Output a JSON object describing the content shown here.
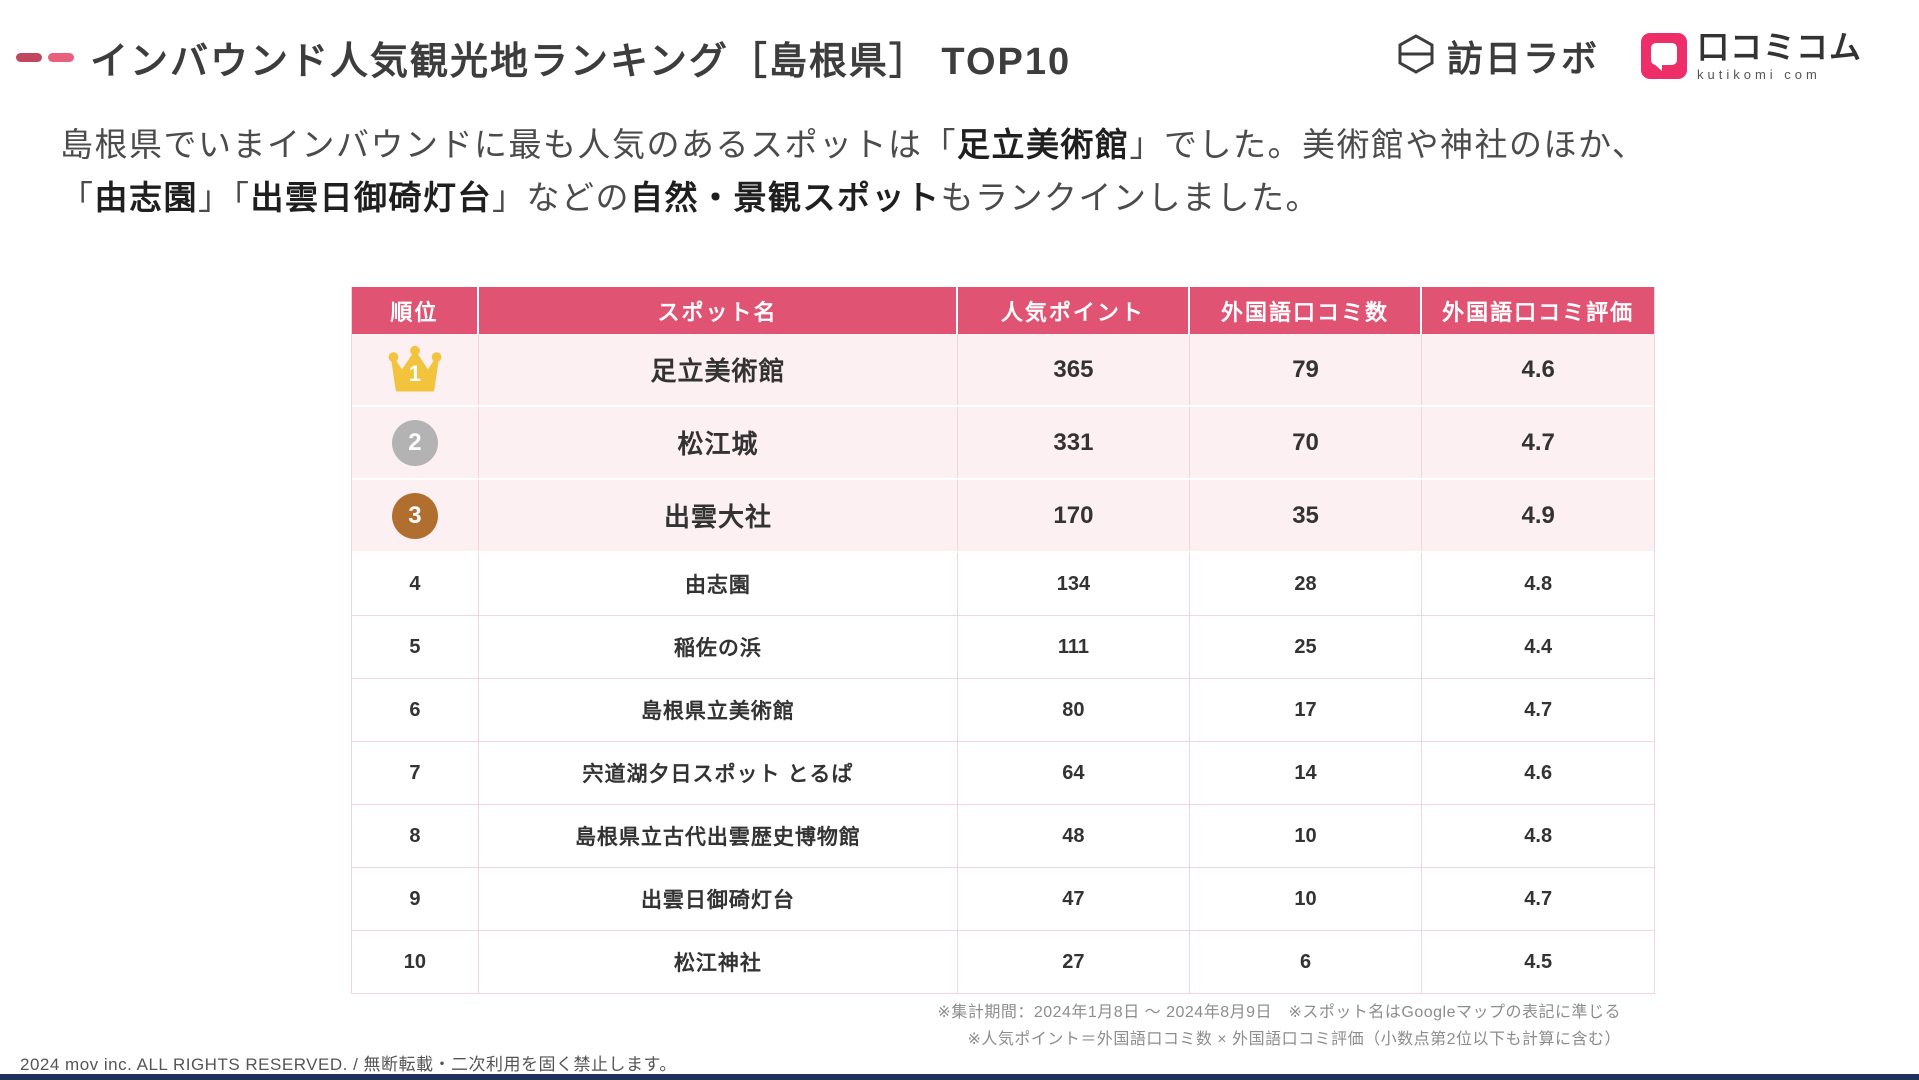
{
  "header": {
    "title": "インバウンド人気観光地ランキング［島根県］ TOP10",
    "logo_honichi": {
      "text": "訪日ラボ"
    },
    "logo_kutikomi": {
      "text": "口コミコム",
      "subtext": "kutikomi com"
    }
  },
  "intro": {
    "lines": [
      [
        {
          "t": "島根県でいまインバウンドに最も人気のあるスポットは「",
          "b": false
        },
        {
          "t": "足立美術館",
          "b": true
        },
        {
          "t": "」でした。美術館や神社のほか、",
          "b": false
        }
      ],
      [
        {
          "t": "「",
          "b": false
        },
        {
          "t": "由志園",
          "b": true
        },
        {
          "t": "」「",
          "b": false
        },
        {
          "t": "出雲日御碕灯台",
          "b": true
        },
        {
          "t": "」などの",
          "b": false
        },
        {
          "t": "自然・景観スポット",
          "b": true
        },
        {
          "t": "もランクインしました。",
          "b": false
        }
      ]
    ]
  },
  "table": {
    "columns": [
      "順位",
      "スポット名",
      "人気ポイント",
      "外国語口コミ数",
      "外国語口コミ評価"
    ],
    "rows": [
      {
        "rank": "1",
        "spot": "足立美術館",
        "points": "365",
        "reviews": "79",
        "rating": "4.6",
        "medal": "gold"
      },
      {
        "rank": "2",
        "spot": "松江城",
        "points": "331",
        "reviews": "70",
        "rating": "4.7",
        "medal": "silver"
      },
      {
        "rank": "3",
        "spot": "出雲大社",
        "points": "170",
        "reviews": "35",
        "rating": "4.9",
        "medal": "bronze"
      },
      {
        "rank": "4",
        "spot": "由志園",
        "points": "134",
        "reviews": "28",
        "rating": "4.8",
        "medal": ""
      },
      {
        "rank": "5",
        "spot": "稲佐の浜",
        "points": "111",
        "reviews": "25",
        "rating": "4.4",
        "medal": ""
      },
      {
        "rank": "6",
        "spot": "島根県立美術館",
        "points": "80",
        "reviews": "17",
        "rating": "4.7",
        "medal": ""
      },
      {
        "rank": "7",
        "spot": "宍道湖夕日スポット とるぱ",
        "points": "64",
        "reviews": "14",
        "rating": "4.6",
        "medal": ""
      },
      {
        "rank": "8",
        "spot": "島根県立古代出雲歴史博物館",
        "points": "48",
        "reviews": "10",
        "rating": "4.8",
        "medal": ""
      },
      {
        "rank": "9",
        "spot": "出雲日御碕灯台",
        "points": "47",
        "reviews": "10",
        "rating": "4.7",
        "medal": ""
      },
      {
        "rank": "10",
        "spot": "松江神社",
        "points": "27",
        "reviews": "6",
        "rating": "4.5",
        "medal": ""
      }
    ]
  },
  "chart_data": {
    "type": "table",
    "title": "インバウンド人気観光地ランキング［島根県］ TOP10",
    "columns": [
      "順位",
      "スポット名",
      "人気ポイント",
      "外国語口コミ数",
      "外国語口コミ評価"
    ],
    "rows": [
      [
        1,
        "足立美術館",
        365,
        79,
        4.6
      ],
      [
        2,
        "松江城",
        331,
        70,
        4.7
      ],
      [
        3,
        "出雲大社",
        170,
        35,
        4.9
      ],
      [
        4,
        "由志園",
        134,
        28,
        4.8
      ],
      [
        5,
        "稲佐の浜",
        111,
        25,
        4.4
      ],
      [
        6,
        "島根県立美術館",
        80,
        17,
        4.7
      ],
      [
        7,
        "宍道湖夕日スポット とるぱ",
        64,
        14,
        4.6
      ],
      [
        8,
        "島根県立古代出雲歴史博物館",
        48,
        10,
        4.8
      ],
      [
        9,
        "出雲日御碕灯台",
        47,
        10,
        4.7
      ],
      [
        10,
        "松江神社",
        27,
        6,
        4.5
      ]
    ]
  },
  "footnotes": {
    "line1": "※集計期間：2024年1月8日 〜 2024年8月9日　※スポット名はGoogleマップの表記に準じる",
    "line2": "※人気ポイント＝外国語口コミ数 × 外国語口コミ評価（小数点第2位以下も計算に含む）"
  },
  "footer": {
    "copyright": "2024 mov inc. ALL RIGHTS RESERVED. / 無断転載・二次利用を固く禁止します。"
  },
  "colors": {
    "header_pink": "#e05372",
    "row_pink": "#fcf0f3",
    "border_pink": "#f1d6db",
    "brand_pink": "#ee2e68",
    "gold": "#f2c33c",
    "silver": "#b3b3b3",
    "bronze": "#b06e2f",
    "bottom_bar_navy": "#20305f"
  }
}
